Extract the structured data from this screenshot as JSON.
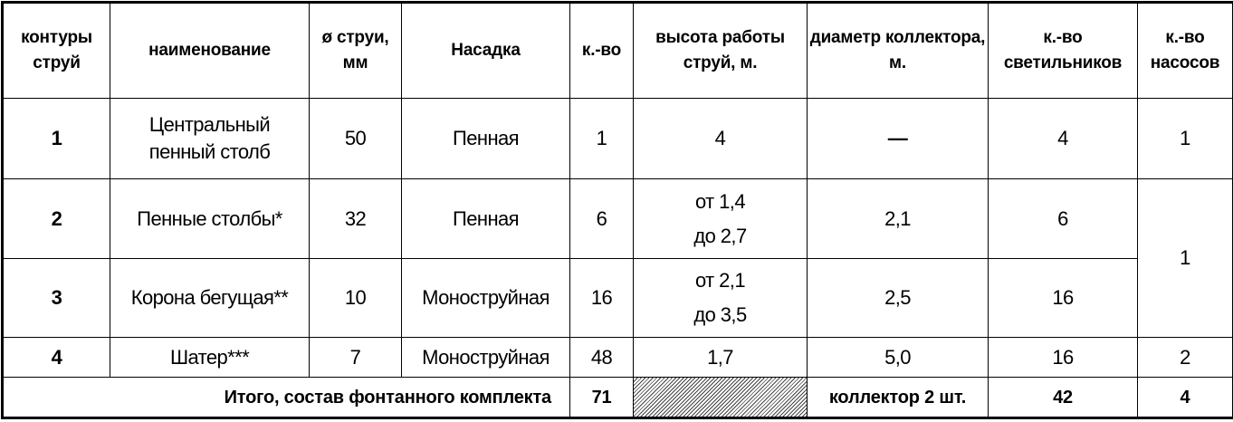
{
  "headers": [
    "контуры струй",
    "наименование",
    "ø струи, мм",
    "Насадка",
    "к.-во",
    "высота работы струй, м.",
    "диаметр коллектора, м.",
    "к.-во светильников",
    "к.-во насосов"
  ],
  "rows": [
    {
      "contour": "1",
      "name": "Центральный пенный столб",
      "diameter": "50",
      "nozzle": "Пенная",
      "count": "1",
      "height": "4",
      "collector": "—",
      "lights": "4",
      "pumps": "1"
    },
    {
      "contour": "2",
      "name": "Пенные столбы*",
      "diameter": "32",
      "nozzle": "Пенная",
      "count": "6",
      "height": "от 1,4 до 2,7",
      "collector": "2,1",
      "lights": "6",
      "pumps": "1"
    },
    {
      "contour": "3",
      "name": "Корона бегущая**",
      "diameter": "10",
      "nozzle": "Моноструйная",
      "count": "16",
      "height": "от 2,1 до 3,5",
      "collector": "2,5",
      "lights": "16"
    },
    {
      "contour": "4",
      "name": "Шатер***",
      "diameter": "7",
      "nozzle": "Моноструйная",
      "count": "48",
      "height": "1,7",
      "collector": "5,0",
      "lights": "16",
      "pumps": "2"
    }
  ],
  "total": {
    "label": "Итого, состав фонтанного комплекта",
    "count": "71",
    "collector": "коллектор 2 шт.",
    "lights": "42",
    "pumps": "4"
  }
}
